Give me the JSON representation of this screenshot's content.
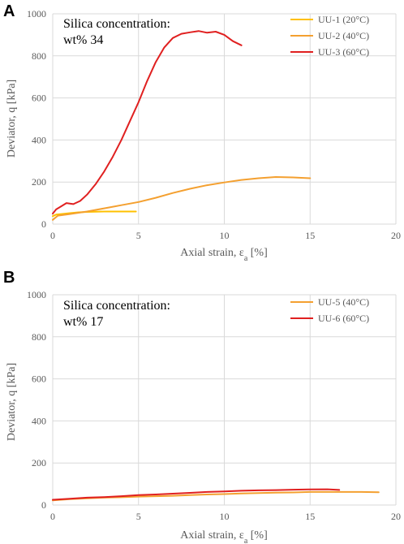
{
  "chart_data": [
    {
      "panel": "A",
      "type": "line",
      "xlabel": "Axial strain, ε",
      "xlabel_sub": "a",
      "xlabel_unit": " [%]",
      "ylabel": "Deviator, q [kPa]",
      "xlim": [
        0,
        20
      ],
      "ylim": [
        0,
        1000
      ],
      "xticks": [
        0,
        5,
        10,
        15,
        20
      ],
      "yticks": [
        0,
        200,
        400,
        600,
        800,
        1000
      ],
      "annotation": [
        "Silica concentration:",
        "wt% 34"
      ],
      "legend_position": "top-right",
      "grid": true,
      "series": [
        {
          "name": "UU-1 (20°C)",
          "color": "#FFC000",
          "x": [
            0,
            0.2,
            0.5,
            1,
            1.5,
            2,
            2.5,
            3,
            3.5,
            4,
            4.5,
            4.85
          ],
          "y": [
            38,
            45,
            48,
            52,
            56,
            58,
            59,
            60,
            60,
            60,
            60,
            60
          ]
        },
        {
          "name": "UU-2 (40°C)",
          "color": "#F4A030",
          "x": [
            0,
            0.3,
            1,
            2,
            3,
            4,
            5,
            6,
            7,
            8,
            9,
            10,
            11,
            12,
            13,
            14,
            15
          ],
          "y": [
            20,
            40,
            48,
            60,
            75,
            90,
            105,
            125,
            148,
            168,
            185,
            198,
            210,
            218,
            224,
            222,
            218
          ]
        },
        {
          "name": "UU-3 (60°C)",
          "color": "#E02020",
          "x": [
            0,
            0.2,
            0.5,
            0.8,
            1.2,
            1.6,
            2,
            2.5,
            3,
            3.5,
            4,
            4.5,
            5,
            5.5,
            6,
            6.5,
            7,
            7.5,
            8,
            8.5,
            9,
            9.5,
            10,
            10.5,
            11
          ],
          "y": [
            50,
            70,
            85,
            100,
            95,
            110,
            140,
            190,
            250,
            320,
            400,
            490,
            580,
            680,
            770,
            840,
            885,
            905,
            912,
            918,
            910,
            915,
            900,
            870,
            850
          ]
        }
      ]
    },
    {
      "panel": "B",
      "type": "line",
      "xlabel": "Axial strain, ε",
      "xlabel_sub": "a",
      "xlabel_unit": " [%]",
      "ylabel": "Deviator, q [kPa]",
      "xlim": [
        0,
        20
      ],
      "ylim": [
        0,
        1000
      ],
      "xticks": [
        0,
        5,
        10,
        15,
        20
      ],
      "yticks": [
        0,
        200,
        400,
        600,
        800,
        1000
      ],
      "annotation": [
        "Silica concentration:",
        "wt% 17"
      ],
      "legend_position": "top-right",
      "grid": true,
      "series": [
        {
          "name": "UU-5 (40°C)",
          "color": "#F4A030",
          "x": [
            0,
            1,
            2,
            3,
            4,
            5,
            6,
            7,
            8,
            9,
            10,
            11,
            12,
            13,
            14,
            15,
            16,
            17,
            18,
            19
          ],
          "y": [
            22,
            28,
            32,
            35,
            37,
            40,
            42,
            44,
            47,
            50,
            52,
            55,
            57,
            59,
            60,
            62,
            62,
            62,
            62,
            61
          ]
        },
        {
          "name": "UU-6 (60°C)",
          "color": "#E02020",
          "x": [
            0,
            1,
            2,
            3,
            4,
            5,
            6,
            7,
            8,
            9,
            10,
            11,
            12,
            13,
            14,
            15,
            16,
            16.7
          ],
          "y": [
            25,
            30,
            35,
            38,
            42,
            47,
            50,
            54,
            58,
            62,
            65,
            68,
            70,
            71,
            73,
            74,
            75,
            72
          ]
        }
      ]
    }
  ]
}
